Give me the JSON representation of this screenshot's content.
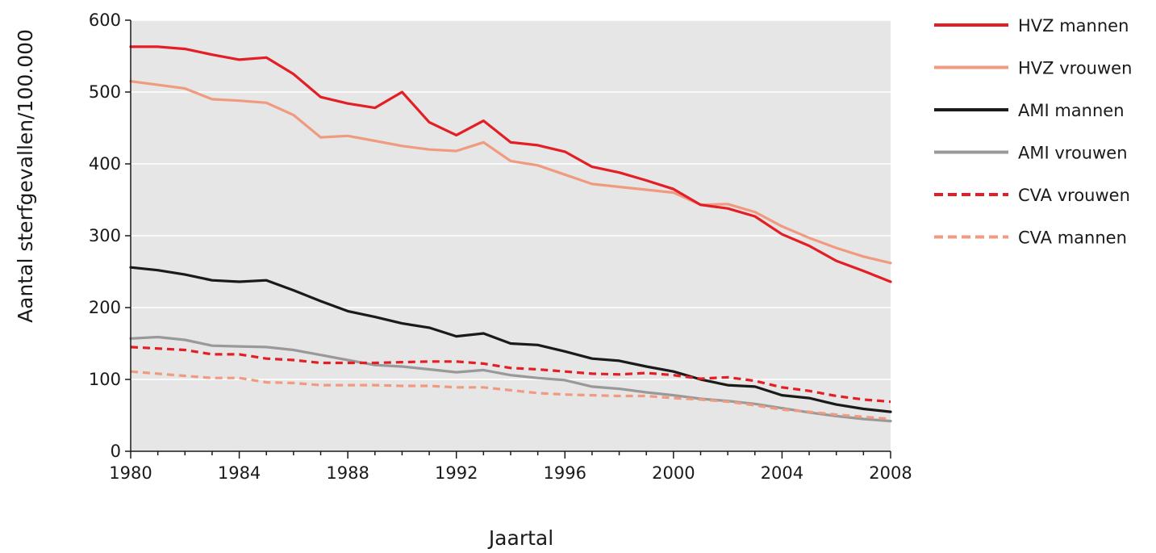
{
  "chart_data": {
    "type": "line",
    "title": "",
    "xlabel": "Jaartal",
    "ylabel": "Aantal sterfgevallen/100.000",
    "xlim": [
      1980,
      2008
    ],
    "ylim": [
      0,
      600
    ],
    "x_ticks": [
      1980,
      1984,
      1988,
      1992,
      1996,
      2000,
      2004,
      2008
    ],
    "y_ticks": [
      0,
      100,
      200,
      300,
      400,
      500,
      600
    ],
    "grid": true,
    "legend_position": "right",
    "plot_background": "#e6e6e6",
    "x": [
      1980,
      1981,
      1982,
      1983,
      1984,
      1985,
      1986,
      1987,
      1988,
      1989,
      1990,
      1991,
      1992,
      1993,
      1994,
      1995,
      1996,
      1997,
      1998,
      1999,
      2000,
      2001,
      2002,
      2003,
      2004,
      2005,
      2006,
      2007,
      2008
    ],
    "series": [
      {
        "name": "HVZ mannen",
        "color": "#e31e24",
        "dash": "solid",
        "values": [
          563,
          563,
          560,
          552,
          545,
          548,
          525,
          493,
          484,
          478,
          500,
          458,
          440,
          460,
          430,
          426,
          417,
          396,
          388,
          377,
          365,
          343,
          338,
          327,
          302,
          286,
          265,
          251,
          236
        ]
      },
      {
        "name": "HVZ vrouwen",
        "color": "#f09a80",
        "dash": "solid",
        "values": [
          515,
          510,
          505,
          490,
          488,
          485,
          468,
          437,
          439,
          432,
          425,
          420,
          418,
          430,
          404,
          398,
          385,
          372,
          368,
          364,
          360,
          343,
          344,
          333,
          313,
          297,
          283,
          271,
          262
        ]
      },
      {
        "name": "AMI mannen",
        "color": "#1a1a1a",
        "dash": "solid",
        "values": [
          256,
          252,
          246,
          238,
          236,
          238,
          224,
          209,
          195,
          187,
          178,
          172,
          160,
          164,
          150,
          148,
          139,
          129,
          126,
          118,
          111,
          100,
          92,
          90,
          78,
          74,
          65,
          59,
          55
        ]
      },
      {
        "name": "AMI vrouwen",
        "color": "#999999",
        "dash": "solid",
        "values": [
          157,
          159,
          155,
          147,
          146,
          145,
          141,
          134,
          127,
          120,
          118,
          114,
          110,
          113,
          106,
          102,
          99,
          90,
          87,
          82,
          78,
          73,
          70,
          66,
          60,
          54,
          49,
          45,
          42
        ]
      },
      {
        "name": "CVA vrouwen",
        "color": "#e31e24",
        "dash": "dashed",
        "values": [
          145,
          143,
          141,
          135,
          135,
          129,
          127,
          123,
          123,
          123,
          124,
          125,
          125,
          122,
          116,
          114,
          111,
          108,
          107,
          109,
          106,
          101,
          103,
          98,
          89,
          84,
          77,
          72,
          69
        ]
      },
      {
        "name": "CVA mannen",
        "color": "#f09a80",
        "dash": "dashed",
        "values": [
          111,
          108,
          105,
          102,
          102,
          96,
          95,
          92,
          92,
          92,
          91,
          91,
          89,
          89,
          85,
          81,
          79,
          78,
          77,
          77,
          74,
          72,
          69,
          64,
          58,
          55,
          51,
          48,
          45
        ]
      }
    ]
  }
}
